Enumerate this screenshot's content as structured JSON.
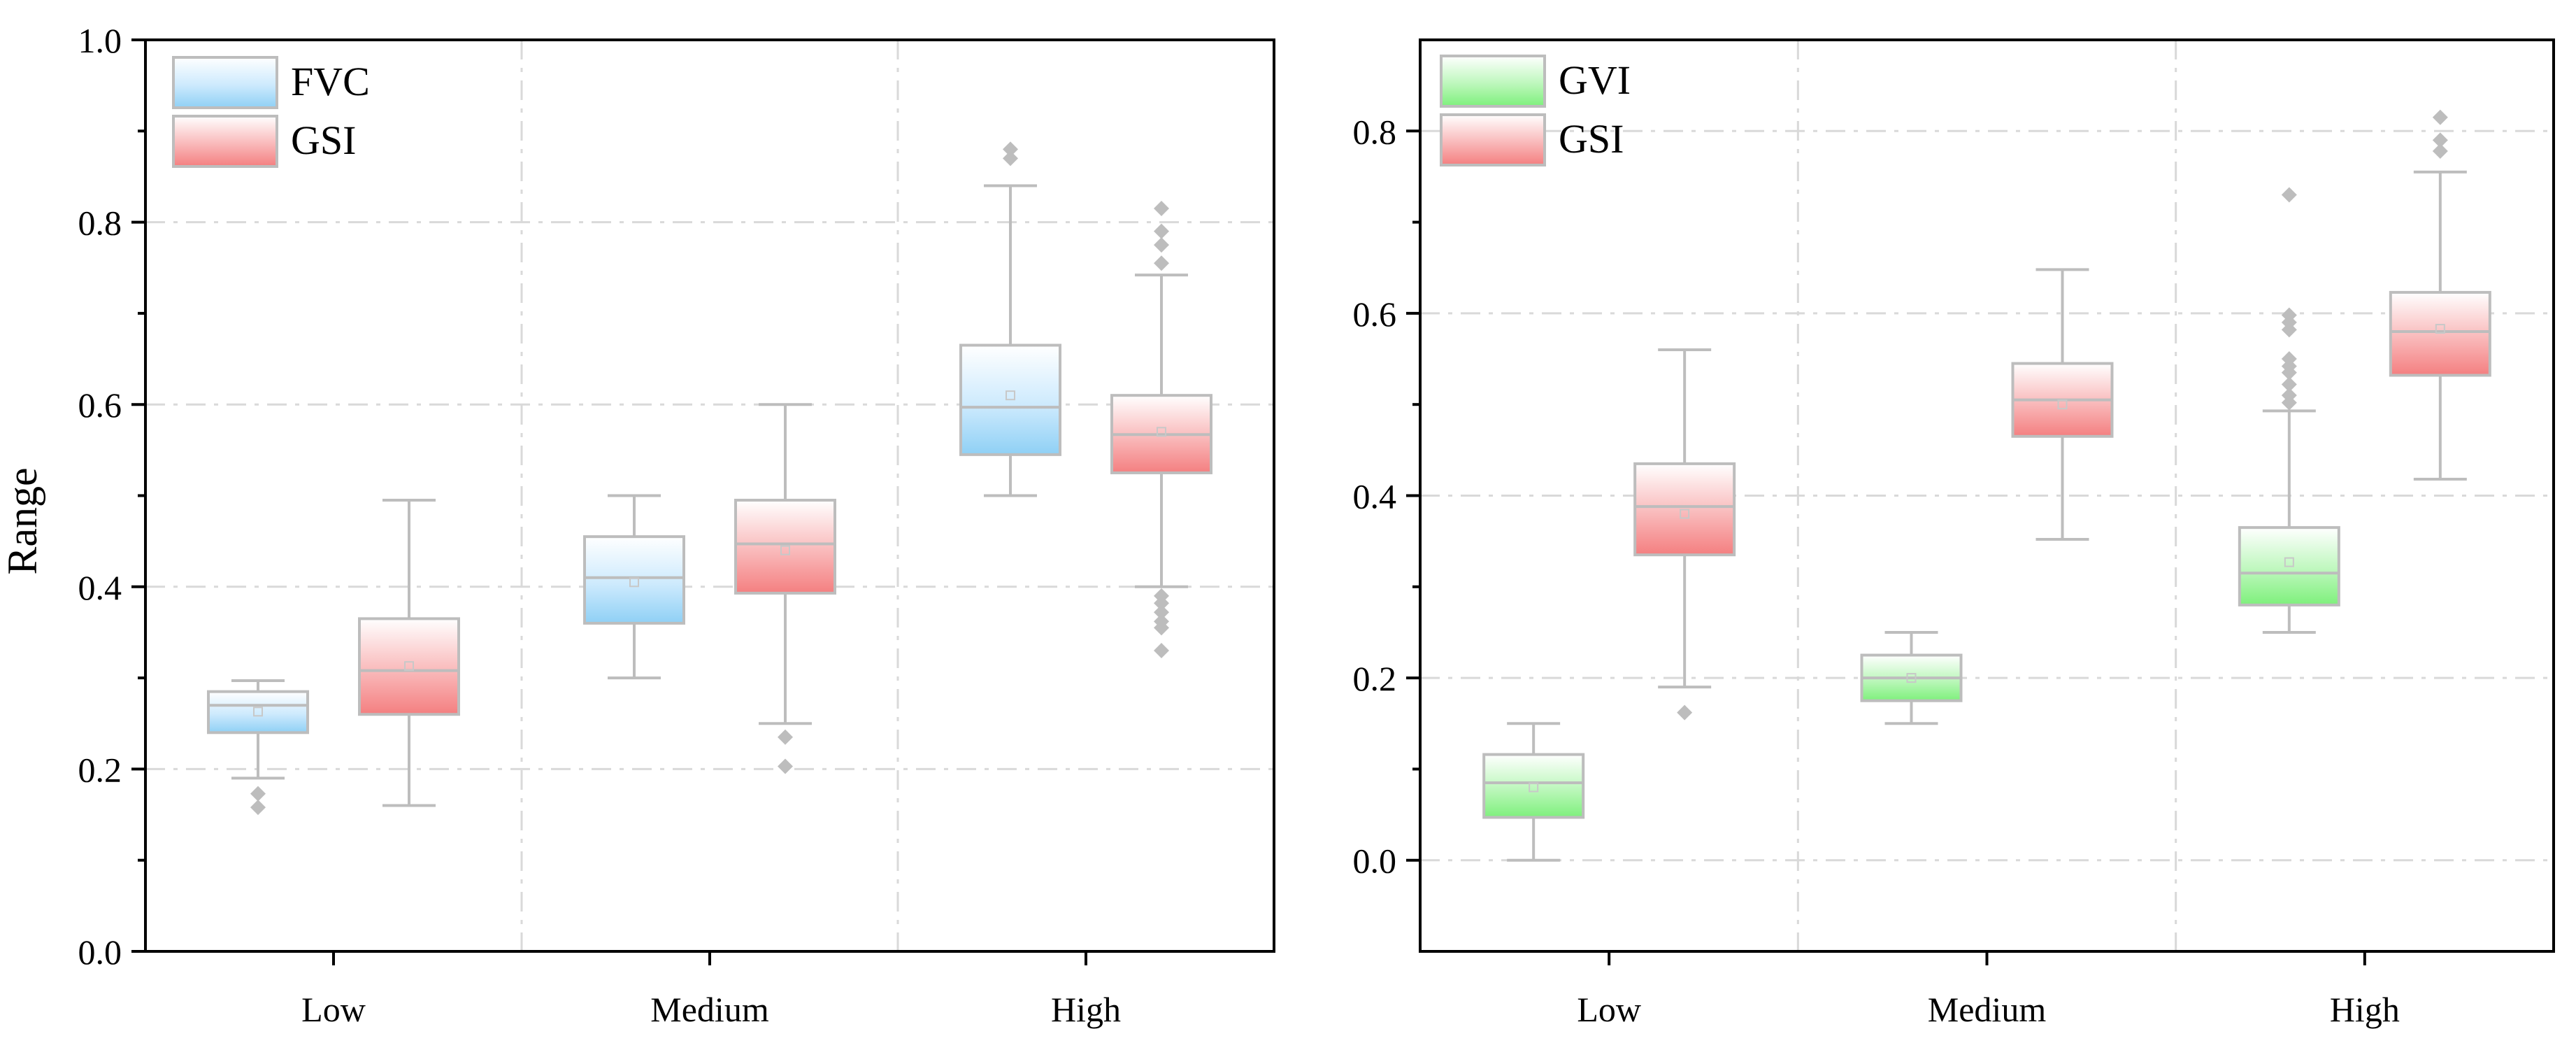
{
  "chart_data": [
    {
      "type": "box",
      "title": "",
      "xlabel": "",
      "ylabel": "Range",
      "ylim": [
        0,
        1.0
      ],
      "yticks": [
        "0.0",
        "0.2",
        "0.4",
        "0.6",
        "0.8",
        "1.0"
      ],
      "categories": [
        "Low",
        "Medium",
        "High"
      ],
      "grid": true,
      "legend_position": "top-left",
      "series": [
        {
          "name": "FVC",
          "color": "#8fd0f5",
          "boxes": [
            {
              "category": "Low",
              "whisker_low": 0.19,
              "q1": 0.24,
              "median": 0.27,
              "q3": 0.285,
              "whisker_high": 0.297,
              "mean": 0.263,
              "outliers": [
                0.173,
                0.158
              ]
            },
            {
              "category": "Medium",
              "whisker_low": 0.3,
              "q1": 0.36,
              "median": 0.41,
              "q3": 0.455,
              "whisker_high": 0.5,
              "mean": 0.405,
              "outliers": []
            },
            {
              "category": "High",
              "whisker_low": 0.5,
              "q1": 0.545,
              "median": 0.597,
              "q3": 0.665,
              "whisker_high": 0.84,
              "mean": 0.61,
              "outliers": [
                0.87,
                0.88
              ]
            }
          ]
        },
        {
          "name": "GSI",
          "color": "#f47f80",
          "boxes": [
            {
              "category": "Low",
              "whisker_low": 0.16,
              "q1": 0.26,
              "median": 0.308,
              "q3": 0.365,
              "whisker_high": 0.495,
              "mean": 0.313,
              "outliers": []
            },
            {
              "category": "Medium",
              "whisker_low": 0.25,
              "q1": 0.393,
              "median": 0.447,
              "q3": 0.495,
              "whisker_high": 0.6,
              "mean": 0.44,
              "outliers": [
                0.235,
                0.203
              ]
            },
            {
              "category": "High",
              "whisker_low": 0.4,
              "q1": 0.525,
              "median": 0.567,
              "q3": 0.61,
              "whisker_high": 0.742,
              "mean": 0.57,
              "outliers": [
                0.815,
                0.79,
                0.775,
                0.755,
                0.39,
                0.382,
                0.372,
                0.362,
                0.355,
                0.33
              ]
            }
          ]
        }
      ]
    },
    {
      "type": "box",
      "title": "",
      "xlabel": "",
      "ylabel": "",
      "ylim": [
        -0.1,
        0.9
      ],
      "yticks": [
        "0.0",
        "0.2",
        "0.4",
        "0.6",
        "0.8"
      ],
      "categories": [
        "Low",
        "Medium",
        "High"
      ],
      "grid": true,
      "legend_position": "top-left",
      "series": [
        {
          "name": "GVI",
          "color": "#7ef07c",
          "boxes": [
            {
              "category": "Low",
              "whisker_low": 0.0,
              "q1": 0.047,
              "median": 0.085,
              "q3": 0.116,
              "whisker_high": 0.15,
              "mean": 0.08,
              "outliers": []
            },
            {
              "category": "Medium",
              "whisker_low": 0.15,
              "q1": 0.175,
              "median": 0.2,
              "q3": 0.225,
              "whisker_high": 0.25,
              "mean": 0.2,
              "outliers": []
            },
            {
              "category": "High",
              "whisker_low": 0.25,
              "q1": 0.28,
              "median": 0.315,
              "q3": 0.365,
              "whisker_high": 0.493,
              "mean": 0.327,
              "outliers": [
                0.73,
                0.598,
                0.59,
                0.582,
                0.55,
                0.542,
                0.535,
                0.522,
                0.51,
                0.502
              ]
            }
          ]
        },
        {
          "name": "GSI",
          "color": "#f47f80",
          "boxes": [
            {
              "category": "Low",
              "whisker_low": 0.19,
              "q1": 0.335,
              "median": 0.388,
              "q3": 0.435,
              "whisker_high": 0.56,
              "mean": 0.38,
              "outliers": [
                0.162
              ]
            },
            {
              "category": "Medium",
              "whisker_low": 0.352,
              "q1": 0.465,
              "median": 0.505,
              "q3": 0.545,
              "whisker_high": 0.648,
              "mean": 0.5,
              "outliers": []
            },
            {
              "category": "High",
              "whisker_low": 0.418,
              "q1": 0.532,
              "median": 0.58,
              "q3": 0.623,
              "whisker_high": 0.755,
              "mean": 0.583,
              "outliers": [
                0.815,
                0.79,
                0.778
              ]
            }
          ]
        }
      ]
    }
  ]
}
